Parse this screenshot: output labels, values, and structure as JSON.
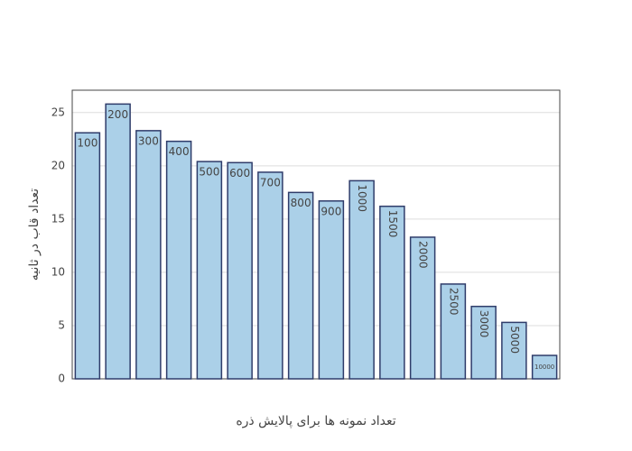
{
  "chart_data": {
    "type": "bar",
    "x_label": "تعداد نمونه ها برای پالایش ذره",
    "y_label": "تعداد قاب در ثانیه",
    "categories": [
      "100",
      "200",
      "300",
      "400",
      "500",
      "600",
      "700",
      "800",
      "900",
      "1000",
      "1500",
      "2000",
      "2500",
      "3000",
      "5000",
      "10000"
    ],
    "values": [
      23.1,
      25.8,
      23.3,
      22.3,
      20.4,
      20.3,
      19.4,
      17.5,
      16.7,
      18.6,
      16.2,
      13.3,
      8.9,
      6.8,
      5.3,
      2.2
    ],
    "color": "#abd0e8",
    "edge_color": "#2f3c6a",
    "ylim": [
      0,
      27.1
    ],
    "yticks": [
      0,
      5,
      10,
      15,
      20,
      25
    ],
    "grid": true
  }
}
